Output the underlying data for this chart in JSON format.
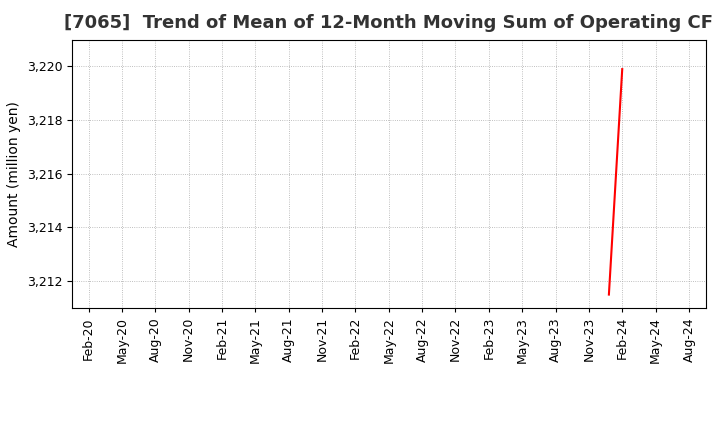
{
  "title": "[7065]  Trend of Mean of 12-Month Moving Sum of Operating CF",
  "ylabel": "Amount (million yen)",
  "ylim": [
    3211.0,
    3221.0
  ],
  "yticks": [
    3212,
    3214,
    3216,
    3218,
    3220
  ],
  "background_color": "#ffffff",
  "grid_color": "#aaaaaa",
  "line_color_3y": "#ff0000",
  "line_color_5y": "#0000bb",
  "line_color_7y": "#00cccc",
  "line_color_10y": "#009900",
  "x_labels": [
    "Feb-20",
    "May-20",
    "Aug-20",
    "Nov-20",
    "Feb-21",
    "May-21",
    "Aug-21",
    "Nov-21",
    "Feb-22",
    "May-22",
    "Aug-22",
    "Nov-22",
    "Feb-23",
    "May-23",
    "Aug-23",
    "Nov-23",
    "Feb-24",
    "May-24",
    "Aug-24"
  ],
  "red_line_x": [
    15.6,
    16.0
  ],
  "red_line_y": [
    3211.5,
    3219.9
  ],
  "title_fontsize": 13,
  "axis_label_fontsize": 10,
  "tick_fontsize": 9,
  "legend_fontsize": 10
}
